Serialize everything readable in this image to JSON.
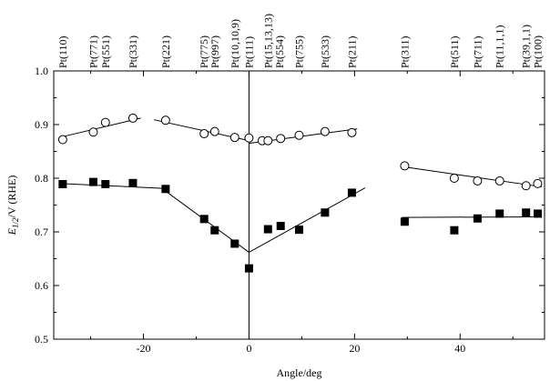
{
  "chart_data": {
    "type": "scatter",
    "title": "",
    "xlabel": "Angle/deg",
    "ylabel": "E1/2/V (RHE)",
    "ylabel_parts": {
      "main": "E",
      "sub": "1/2",
      "rest": "/V (RHE)"
    },
    "xlim": [
      -37,
      56
    ],
    "ylim": [
      0.5,
      1.0
    ],
    "x_ticks": [
      -20,
      0,
      20,
      40
    ],
    "x_tick_labels": [
      "-20",
      "0",
      "20",
      "40"
    ],
    "y_ticks": [
      0.5,
      0.6,
      0.7,
      0.8,
      0.9,
      1.0
    ],
    "y_tick_labels": [
      "0.5",
      "0.6",
      "0.7",
      "0.8",
      "0.9",
      "1.0"
    ],
    "vertical_line_x": 0,
    "top_labels": [
      {
        "label": "Pt(110)",
        "x": -35.3
      },
      {
        "label": "Pt(771)",
        "x": -29.5
      },
      {
        "label": "Pt(551)",
        "x": -27.2
      },
      {
        "label": "Pt(331)",
        "x": -22.0
      },
      {
        "label": "Pt(221)",
        "x": -15.8
      },
      {
        "label": "Pt(775)",
        "x": -8.5
      },
      {
        "label": "Pt(997)",
        "x": -6.5
      },
      {
        "label": "Pt(10,10,9)",
        "x": -2.7
      },
      {
        "label": "Pt(111)",
        "x": 0
      },
      {
        "label": "Pt(15,13,13)",
        "x": 3.6
      },
      {
        "label": "Pt(554)",
        "x": 5.8
      },
      {
        "label": "Pt(755)",
        "x": 9.5
      },
      {
        "label": "Pt(533)",
        "x": 14.4
      },
      {
        "label": "Pt(211)",
        "x": 19.5
      },
      {
        "label": "Pt(311)",
        "x": 29.5
      },
      {
        "label": "Pt(511)",
        "x": 38.9
      },
      {
        "label": "Pt(711)",
        "x": 43.3
      },
      {
        "label": "Pt(11,1,1)",
        "x": 47.5
      },
      {
        "label": "Pt(39,1,1)",
        "x": 52.5
      },
      {
        "label": "Pt(100)",
        "x": 54.7
      }
    ],
    "series": [
      {
        "name": "open circles",
        "marker": "circle-open",
        "x": [
          -35.3,
          -29.5,
          -27.2,
          -22.0,
          -15.8,
          -8.5,
          -6.5,
          -2.7,
          0,
          2.5,
          3.6,
          6.0,
          9.5,
          14.4,
          19.5,
          29.5,
          38.9,
          43.3,
          47.5,
          52.5,
          54.7
        ],
        "y": [
          0.872,
          0.886,
          0.904,
          0.912,
          0.908,
          0.883,
          0.887,
          0.876,
          0.875,
          0.87,
          0.87,
          0.874,
          0.88,
          0.887,
          0.885,
          0.823,
          0.8,
          0.795,
          0.795,
          0.786,
          0.79
        ]
      },
      {
        "name": "filled squares",
        "marker": "square-filled",
        "x": [
          -35.3,
          -29.5,
          -27.2,
          -22.0,
          -15.8,
          -8.5,
          -6.5,
          -2.7,
          0,
          3.6,
          6.0,
          9.5,
          14.4,
          19.5,
          29.5,
          38.9,
          43.3,
          47.5,
          52.5,
          54.7
        ],
        "y": [
          0.789,
          0.793,
          0.789,
          0.791,
          0.78,
          0.724,
          0.703,
          0.678,
          0.632,
          0.705,
          0.711,
          0.704,
          0.736,
          0.773,
          0.719,
          0.703,
          0.725,
          0.734,
          0.736,
          0.734
        ]
      }
    ],
    "fit_lines": [
      {
        "name": "circles fit left",
        "x": [
          -35.5,
          -20.5
        ],
        "y": [
          0.877,
          0.912
        ]
      },
      {
        "name": "circles fit center-left",
        "x": [
          -18.0,
          0.5
        ],
        "y": [
          0.909,
          0.869
        ]
      },
      {
        "name": "circles fit center-right",
        "x": [
          0,
          20.5
        ],
        "y": [
          0.865,
          0.892
        ]
      },
      {
        "name": "circles fit right",
        "x": [
          29.5,
          55.5
        ],
        "y": [
          0.821,
          0.784
        ]
      },
      {
        "name": "squares fit left",
        "x": [
          -35.5,
          -16.0
        ],
        "y": [
          0.79,
          0.781
        ]
      },
      {
        "name": "squares fit center-left",
        "x": [
          -16.5,
          0
        ],
        "y": [
          0.781,
          0.662
        ]
      },
      {
        "name": "squares fit center-right",
        "x": [
          0,
          22.0
        ],
        "y": [
          0.662,
          0.782
        ]
      },
      {
        "name": "squares fit right",
        "x": [
          29.0,
          55.5
        ],
        "y": [
          0.727,
          0.728
        ]
      }
    ]
  }
}
